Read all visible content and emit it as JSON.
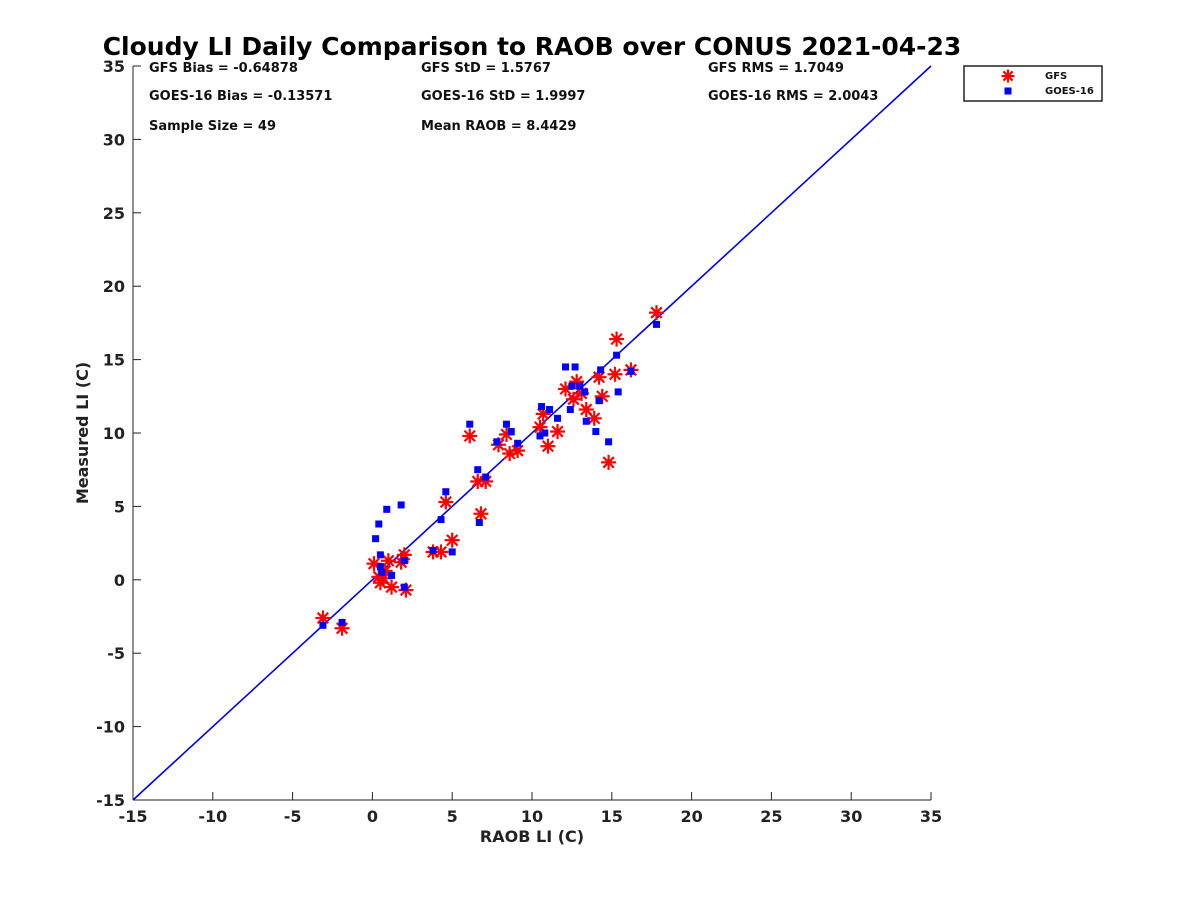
{
  "chart_data": {
    "type": "scatter",
    "title": "Cloudy LI Daily Comparison to RAOB over CONUS 2021-04-23",
    "xlabel": "RAOB LI (C)",
    "ylabel": "Measured LI (C)",
    "xlim": [
      -15,
      35
    ],
    "ylim": [
      -15,
      35
    ],
    "xticks": [
      -15,
      -10,
      -5,
      0,
      5,
      10,
      15,
      20,
      25,
      30,
      35
    ],
    "yticks": [
      -15,
      -10,
      -5,
      0,
      5,
      10,
      15,
      20,
      25,
      30,
      35
    ],
    "reference_line": {
      "type": "1:1",
      "from": [
        -15,
        -15
      ],
      "to": [
        35,
        35
      ],
      "color": "#0000e0"
    },
    "legend": {
      "position": "top-right",
      "entries": [
        "GFS",
        "GOES-16"
      ]
    },
    "stats": [
      [
        "GFS Bias = -0.64878",
        "GFS StD = 1.5767",
        "GFS RMS = 1.7049"
      ],
      [
        "GOES-16 Bias = -0.13571",
        "GOES-16 StD = 1.9997",
        "GOES-16 RMS = 2.0043"
      ],
      [
        "Sample Size = 49",
        "Mean RAOB = 8.4429",
        ""
      ]
    ],
    "series": [
      {
        "name": "GFS",
        "marker": "asterisk",
        "color": "#ff0000",
        "points": [
          [
            -3.1,
            -2.6
          ],
          [
            -1.9,
            -3.3
          ],
          [
            0.1,
            1.1
          ],
          [
            0.4,
            0.2
          ],
          [
            0.5,
            -0.2
          ],
          [
            0.7,
            0.1
          ],
          [
            0.8,
            0.6
          ],
          [
            1.0,
            1.3
          ],
          [
            1.2,
            -0.5
          ],
          [
            1.8,
            1.2
          ],
          [
            2.0,
            1.7
          ],
          [
            2.1,
            -0.7
          ],
          [
            3.8,
            1.9
          ],
          [
            4.3,
            1.9
          ],
          [
            4.6,
            5.3
          ],
          [
            5.0,
            2.7
          ],
          [
            6.1,
            9.8
          ],
          [
            6.6,
            6.7
          ],
          [
            6.8,
            4.5
          ],
          [
            7.1,
            6.7
          ],
          [
            7.9,
            9.2
          ],
          [
            8.4,
            9.9
          ],
          [
            8.6,
            8.6
          ],
          [
            9.1,
            8.8
          ],
          [
            10.5,
            10.4
          ],
          [
            10.7,
            11.3
          ],
          [
            11.0,
            9.1
          ],
          [
            11.6,
            10.1
          ],
          [
            12.1,
            13.0
          ],
          [
            12.6,
            12.3
          ],
          [
            12.8,
            13.5
          ],
          [
            13.1,
            12.7
          ],
          [
            13.4,
            11.6
          ],
          [
            13.9,
            11.0
          ],
          [
            14.2,
            13.8
          ],
          [
            14.4,
            12.5
          ],
          [
            14.8,
            8.0
          ],
          [
            15.2,
            14.0
          ],
          [
            15.3,
            16.4
          ],
          [
            16.2,
            14.3
          ],
          [
            17.8,
            18.2
          ]
        ]
      },
      {
        "name": "GOES-16",
        "marker": "square",
        "color": "#0000ff",
        "points": [
          [
            -3.1,
            -3.1
          ],
          [
            -1.9,
            -2.9
          ],
          [
            0.2,
            2.8
          ],
          [
            0.4,
            3.8
          ],
          [
            0.5,
            1.7
          ],
          [
            0.5,
            0.9
          ],
          [
            0.6,
            0.5
          ],
          [
            0.9,
            4.8
          ],
          [
            1.2,
            0.3
          ],
          [
            1.8,
            5.1
          ],
          [
            2.0,
            1.3
          ],
          [
            2.0,
            -0.5
          ],
          [
            3.8,
            2.0
          ],
          [
            4.3,
            4.1
          ],
          [
            4.6,
            6.0
          ],
          [
            5.0,
            1.9
          ],
          [
            6.1,
            10.6
          ],
          [
            6.6,
            7.5
          ],
          [
            6.7,
            3.9
          ],
          [
            7.1,
            7.0
          ],
          [
            7.8,
            9.4
          ],
          [
            8.4,
            10.6
          ],
          [
            8.7,
            10.1
          ],
          [
            9.1,
            9.3
          ],
          [
            10.5,
            9.8
          ],
          [
            10.6,
            11.8
          ],
          [
            10.8,
            10.0
          ],
          [
            11.1,
            11.6
          ],
          [
            11.6,
            11.0
          ],
          [
            12.1,
            14.5
          ],
          [
            12.4,
            11.6
          ],
          [
            12.5,
            13.2
          ],
          [
            12.7,
            14.5
          ],
          [
            13.0,
            13.2
          ],
          [
            13.3,
            12.8
          ],
          [
            13.4,
            10.8
          ],
          [
            14.0,
            10.1
          ],
          [
            14.2,
            12.2
          ],
          [
            14.3,
            14.3
          ],
          [
            14.8,
            9.4
          ],
          [
            15.3,
            15.3
          ],
          [
            15.4,
            12.8
          ],
          [
            16.2,
            14.2
          ],
          [
            17.8,
            17.4
          ]
        ]
      }
    ]
  }
}
